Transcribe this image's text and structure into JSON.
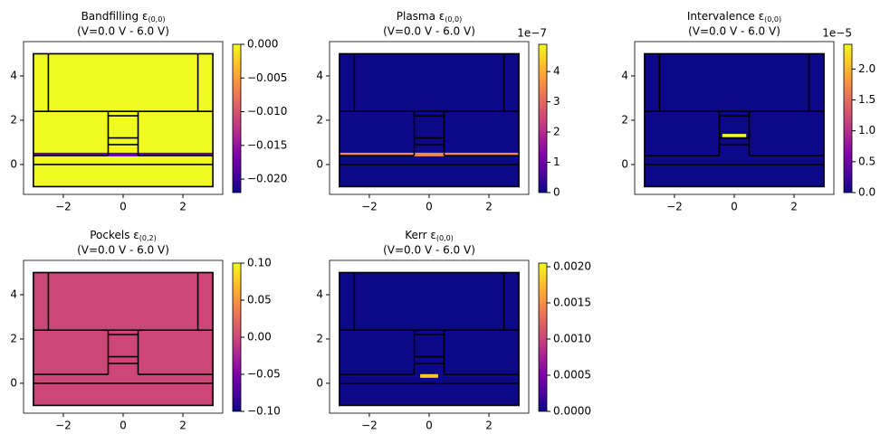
{
  "chart_data": [
    {
      "type": "heatmap",
      "title": "Bandfilling ε",
      "title_sub": "(0,0)",
      "subtitle": "(V=0.0 V - 6.0 V)",
      "colormap": "plasma",
      "xlim": [
        -3.33,
        3.33
      ],
      "ylim": [
        -1.35,
        5.55
      ],
      "xticks": [
        {
          "value": -2,
          "label": "−2"
        },
        0,
        2
      ],
      "yticks": [
        0,
        2,
        4
      ],
      "clim": [
        -0.022,
        0
      ],
      "cticks": [
        {
          "value": 0,
          "label": "0.000"
        },
        {
          "value": -0.005,
          "label": "−0.005"
        },
        {
          "value": -0.01,
          "label": "−0.010"
        },
        {
          "value": -0.015,
          "label": "−0.015"
        },
        {
          "value": -0.02,
          "label": "−0.020"
        }
      ],
      "background": 0,
      "band": {
        "y": 0.45,
        "x": [
          -3,
          3
        ],
        "value": -0.018
      }
    },
    {
      "type": "heatmap",
      "title": "Plasma ε",
      "title_sub": "(0,0)",
      "subtitle": "(V=0.0 V - 6.0 V)",
      "colormap": "plasma",
      "xlim": [
        -3.33,
        3.33
      ],
      "ylim": [
        -1.35,
        5.55
      ],
      "xticks": [
        {
          "value": -2,
          "label": "−2"
        },
        0,
        2
      ],
      "yticks": [
        0,
        2,
        4
      ],
      "clim": [
        0,
        4.9
      ],
      "cticks": [
        0,
        1,
        2,
        3,
        4
      ],
      "c_offset": "1e−7",
      "background": 0,
      "band": {
        "y": 0.45,
        "x": [
          -3,
          3
        ],
        "value": 3.5
      }
    },
    {
      "type": "heatmap",
      "title": "Intervalence ε",
      "title_sub": "(0,0)",
      "subtitle": "(V=0.0 V - 6.0 V)",
      "colormap": "plasma",
      "xlim": [
        -3.33,
        3.33
      ],
      "ylim": [
        -1.35,
        5.55
      ],
      "xticks": [
        {
          "value": -2,
          "label": "−2"
        },
        0,
        2
      ],
      "yticks": [
        0,
        2,
        4
      ],
      "clim": [
        0,
        2.4
      ],
      "cticks": [
        {
          "value": 0,
          "label": "0.0"
        },
        0.5,
        {
          "value": 1,
          "label": "1.0"
        },
        1.5,
        {
          "value": 2,
          "label": "2.0"
        }
      ],
      "c_offset": "1e−5",
      "background": 0,
      "band": {
        "y": 1.3,
        "x": [
          -0.4,
          0.4
        ],
        "value": 2.4
      }
    },
    {
      "type": "heatmap",
      "title": "Pockels ε",
      "title_sub": "(0,2)",
      "subtitle": "(V=0.0 V - 6.0 V)",
      "colormap": "plasma",
      "xlim": [
        -3.33,
        3.33
      ],
      "ylim": [
        -1.35,
        5.55
      ],
      "xticks": [
        {
          "value": -2,
          "label": "−2"
        },
        0,
        2
      ],
      "yticks": [
        0,
        2,
        4
      ],
      "clim": [
        -0.1,
        0.1
      ],
      "cticks": [
        {
          "value": 0.1,
          "label": "0.10"
        },
        0.05,
        {
          "value": 0,
          "label": "0.00"
        },
        {
          "value": -0.05,
          "label": "−0.05"
        },
        {
          "value": -0.1,
          "label": "−0.10"
        }
      ],
      "background": 0
    },
    {
      "type": "heatmap",
      "title": "Kerr ε",
      "title_sub": "(0,0)",
      "subtitle": "(V=0.0 V - 6.0 V)",
      "colormap": "plasma",
      "xlim": [
        -3.33,
        3.33
      ],
      "ylim": [
        -1.35,
        5.55
      ],
      "xticks": [
        {
          "value": -2,
          "label": "−2"
        },
        0,
        2
      ],
      "yticks": [
        0,
        2,
        4
      ],
      "clim": [
        0,
        0.00205
      ],
      "cticks": [
        {
          "value": 0,
          "label": "0.0000"
        },
        0.0005,
        {
          "value": 0.001,
          "label": "0.0010"
        },
        {
          "value": 0.0015,
          "label": "0.0015"
        },
        {
          "value": 0.002,
          "label": "0.0020"
        }
      ],
      "background": 0,
      "band": {
        "y": 0.33,
        "x": [
          -0.3,
          0.3
        ],
        "value": 0.0018
      }
    }
  ]
}
